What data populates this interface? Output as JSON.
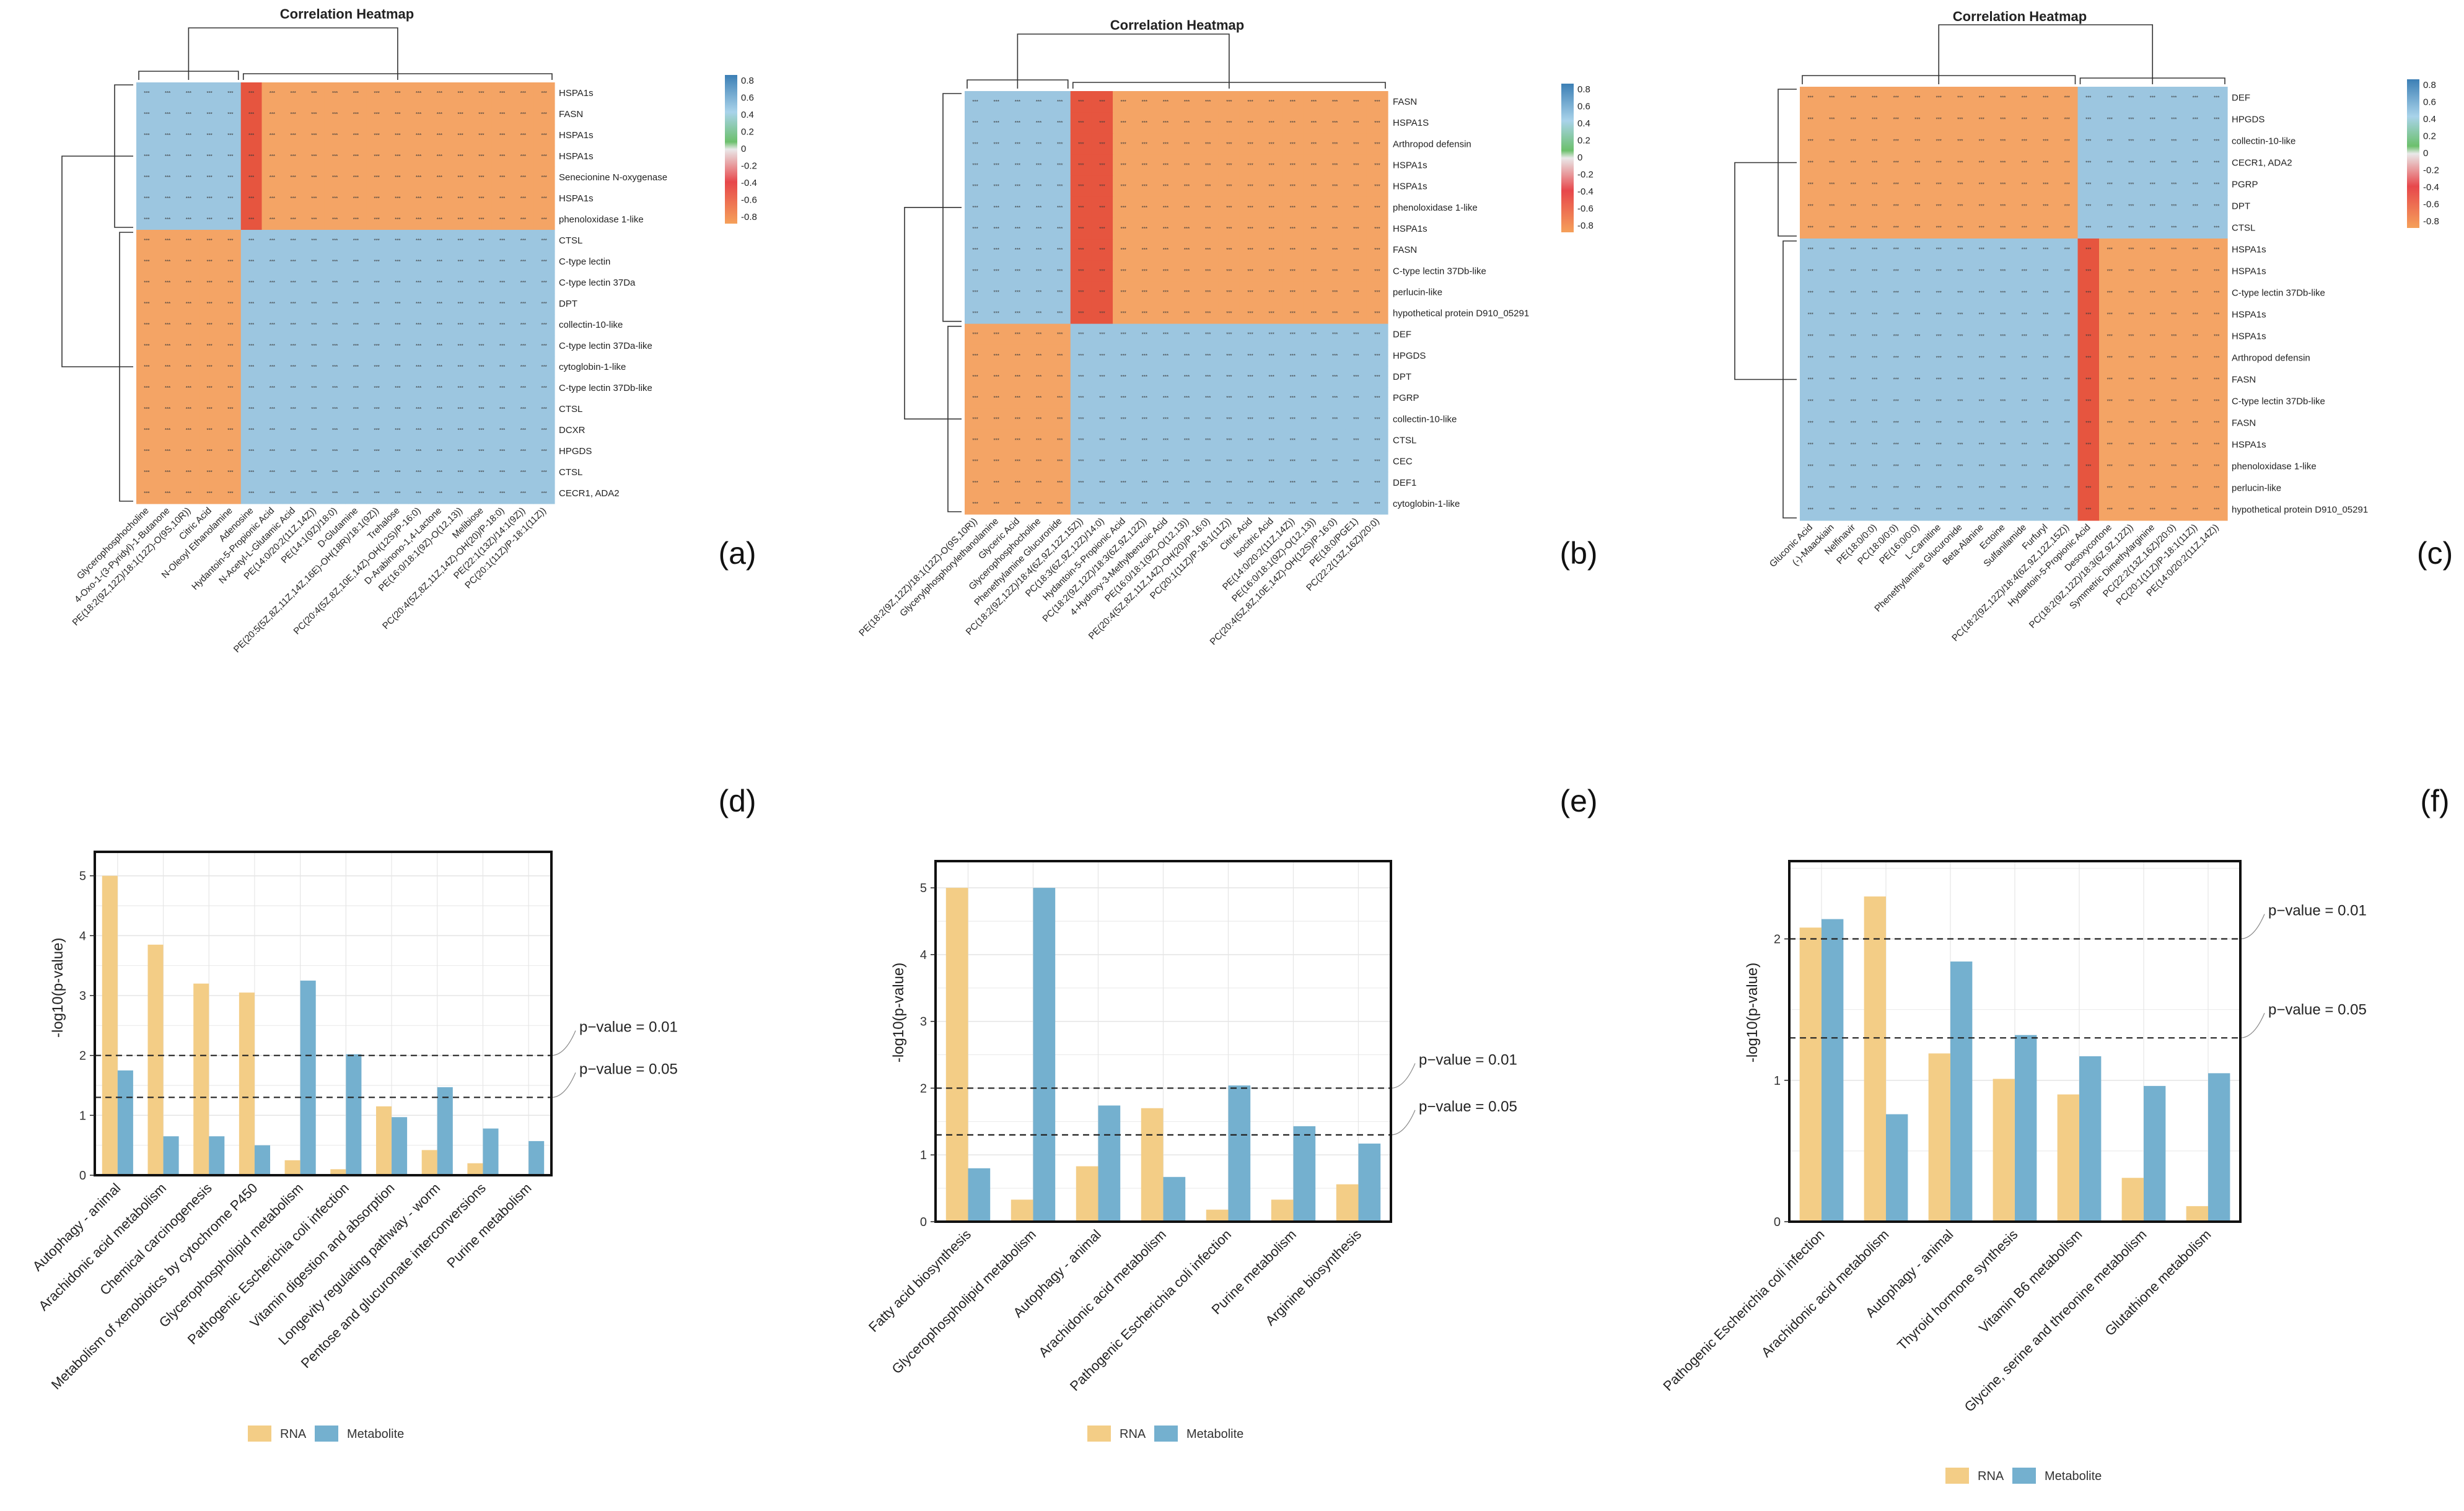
{
  "panel_labels": [
    "(a)",
    "(b)",
    "(c)",
    "(d)",
    "(e)",
    "(f)"
  ],
  "colors": {
    "rna": "#f3cd86",
    "metabolite": "#74b0cf",
    "heat_pos": "#9cc6e0",
    "heat_neg": "#f4a465",
    "heat_neg_strong": "#e6553f",
    "grid": "#e6e6e6"
  },
  "legend_labels": {
    "rna": "RNA",
    "metabolite": "Metabolite"
  },
  "chart_data": [
    {
      "id": "a",
      "type": "heatmap",
      "title": "Correlation Heatmap",
      "columns": [
        "Glycerophosphocholine",
        "4-Oxo-1-(3-Pyridyl)-1-Butanone",
        "PE(18:2(9Z,12Z)/18:1(12Z)-O(9S,10R))",
        "Citric Acid",
        "N-Oleoyl Ethanolamine",
        "Adenosine",
        "Hydantoin-5-Propionic Acid",
        "N-Acetyl-L-Glutamic Acid",
        "PE(14:0/20:2(11Z,14Z))",
        "PE(14:1(9Z)/18:0)",
        "D-Glutamine",
        "PE(20:5(5Z,8Z,11Z,14Z,16E)-OH(18R)/18:1(9Z))",
        "Trehalose",
        "PC(20:4(5Z,8Z,10E,14Z)-OH(12S)/P-16:0)",
        "D-Arabinono-1,4-Lactone",
        "PE(16:0/18:1(9Z)-O(12,13))",
        "Melibiose",
        "PC(20:4(5Z,8Z,11Z,14Z)-OH(20)/P-18:0)",
        "PE(22:1(13Z)/14:1(9Z))",
        "PC(20:1(11Z)/P-18:1(11Z))"
      ],
      "rows": [
        "HSPA1s",
        "FASN",
        "HSPA1s",
        "HSPA1s",
        "Senecionine N-oxygenase",
        "HSPA1s",
        "phenoloxidase 1-like",
        "CTSL",
        "C-type lectin",
        "C-type lectin 37Da",
        "DPT",
        "collectin-10-like",
        "C-type lectin 37Da-like",
        "cytoglobin-1-like",
        "C-type lectin 37Db-like",
        "CTSL",
        "DCXR",
        "HPGDS",
        "CTSL",
        "CECR1, ADA2"
      ],
      "colorbar_ticks": [
        "0.8",
        "0.6",
        "0.4",
        "0.2",
        "0",
        "-0.2",
        "-0.4",
        "-0.6",
        "-0.8"
      ],
      "pattern": {
        "top_block_rows": 7,
        "left_block_cols": 5,
        "value_diag_blocks": 0.8,
        "value_off_blocks": -0.8,
        "cell_text": "***"
      }
    },
    {
      "id": "b",
      "type": "heatmap",
      "title": "Correlation Heatmap",
      "columns": [
        "PE(18:2(9Z,12Z)/18:1(12Z)-O(9S,10R))",
        "Glycerylphosphorylethanolamine",
        "Glyceric Acid",
        "Glycerophosphocholine",
        "Phenethylamine Glucuronide",
        "PC(18:2(9Z,12Z)/18:4(6Z,9Z,12Z,15Z))",
        "PC(18:3(6Z,9Z,12Z)/14:0)",
        "Hydantoin-5-Propionic Acid",
        "PC(18:2(9Z,12Z)/18:3(6Z,9Z,12Z))",
        "4-Hydroxy-3-Methylbenzoic Acid",
        "PE(16:0/18:1(9Z)-O(12,13))",
        "PE(20:4(5Z,8Z,11Z,14Z)-OH(20)/P-16:0)",
        "PC(20:1(11Z)/P-18:1(11Z))",
        "Citric Acid",
        "Isocitric Acid",
        "PE(14:0/20:2(11Z,14Z))",
        "PE(16:0/18:1(9Z)-O(12,13))",
        "PC(20:4(5Z,8Z,10E,14Z)-OH(12S)/P-16:0)",
        "PE(18:0/PGE1)",
        "PC(22:2(13Z,16Z)/20:0)"
      ],
      "rows": [
        "FASN",
        "HSPA1S",
        "Arthropod defensin",
        "HSPA1s",
        "HSPA1s",
        "phenoloxidase 1-like",
        "HSPA1s",
        "FASN",
        "C-type lectin 37Db-like",
        "perlucin-like",
        "hypothetical protein D910_05291",
        "DEF",
        "HPGDS",
        "DPT",
        "PGRP",
        "collectin-10-like",
        "CTSL",
        "CEC",
        "DEF1",
        "cytoglobin-1-like"
      ],
      "colorbar_ticks": [
        "0.8",
        "0.6",
        "0.4",
        "0.2",
        "0",
        "-0.2",
        "-0.4",
        "-0.6",
        "-0.8"
      ],
      "pattern": {
        "top_block_rows": 11,
        "left_block_cols": 5,
        "value_diag_blocks": 0.8,
        "value_off_blocks": -0.8,
        "cell_text": "***"
      }
    },
    {
      "id": "c",
      "type": "heatmap",
      "title": "Correlation Heatmap",
      "columns": [
        "Gluconic Acid",
        "(-)-Maackiain",
        "Nelfinavir",
        "PE(18:0/0:0)",
        "PC(18:0/0:0)",
        "PE(16:0/0:0)",
        "L-Carnitine",
        "Phenethylamine Glucuronide",
        "Beta-Alanine",
        "Ectoine",
        "Sulfanilamide",
        "Furfuryl",
        "PC(18:2(9Z,12Z)/18:4(6Z,9Z,12Z,15Z))",
        "Hydantoin-5-Propionic Acid",
        "Desoxycortone",
        "PC(18:2(9Z,12Z)/18:3(6Z,9Z,12Z))",
        "Symmetric Dimethylarginine",
        "PC(22:2(13Z,16Z)/20:0)",
        "PC(20:1(11Z)/P-18:1(11Z))",
        "PE(14:0/20:2(11Z,14Z))"
      ],
      "rows": [
        "DEF",
        "HPGDS",
        "collectin-10-like",
        "CECR1, ADA2",
        "PGRP",
        "DPT",
        "CTSL",
        "HSPA1s",
        "HSPA1s",
        "C-type lectin 37Db-like",
        "HSPA1s",
        "HSPA1s",
        "Arthropod defensin",
        "FASN",
        "C-type lectin 37Db-like",
        "FASN",
        "HSPA1s",
        "phenoloxidase 1-like",
        "perlucin-like",
        "hypothetical protein D910_05291"
      ],
      "colorbar_ticks": [
        "0.8",
        "0.6",
        "0.4",
        "0.2",
        "0",
        "-0.2",
        "-0.4",
        "-0.6",
        "-0.8"
      ],
      "pattern": {
        "top_block_rows": 7,
        "left_block_cols": 13,
        "value_diag_blocks": -0.8,
        "value_off_blocks": 0.8,
        "cell_text": "***"
      }
    },
    {
      "id": "d",
      "type": "bar",
      "categories": [
        "Autophagy - animal",
        "Arachidonic acid metabolism",
        "Chemical carcinogenesis",
        "Metabolism of xenobiotics by cytochrome P450",
        "Glycerophospholipid metabolism",
        "Pathogenic Escherichia coli infection",
        "Vitamin digestion and absorption",
        "Longevity regulating pathway - worm",
        "Pentose and glucuronate interconversions",
        "Purine metabolism"
      ],
      "series": [
        {
          "name": "RNA",
          "values": [
            5.0,
            3.85,
            3.2,
            3.05,
            0.25,
            0.1,
            1.15,
            0.42,
            0.2,
            0.0
          ]
        },
        {
          "name": "Metabolite",
          "values": [
            1.75,
            0.65,
            0.65,
            0.5,
            3.25,
            2.02,
            0.97,
            1.47,
            0.78,
            0.57
          ]
        }
      ],
      "ylabel": "-log10(p-value)",
      "ylim": [
        0,
        5.4
      ],
      "yticks": [
        0,
        1,
        2,
        3,
        4,
        5
      ],
      "thresholds": [
        {
          "value": 2.0,
          "label": "p−value = 0.01"
        },
        {
          "value": 1.3,
          "label": "p−value = 0.05"
        }
      ]
    },
    {
      "id": "e",
      "type": "bar",
      "categories": [
        "Fatty acid biosynthesis",
        "Glycerophospholipid metabolism",
        "Autophagy - animal",
        "Arachidonic acid metabolism",
        "Pathogenic Escherichia coli infection",
        "Purine metabolism",
        "Arginine biosynthesis"
      ],
      "series": [
        {
          "name": "RNA",
          "values": [
            5.0,
            0.33,
            0.83,
            1.7,
            0.18,
            0.33,
            0.56
          ]
        },
        {
          "name": "Metabolite",
          "values": [
            0.8,
            5.0,
            1.74,
            0.67,
            2.04,
            1.43,
            1.17
          ]
        }
      ],
      "ylabel": "-log10(p-value)",
      "ylim": [
        0,
        5.4
      ],
      "yticks": [
        0,
        1,
        2,
        3,
        4,
        5
      ],
      "thresholds": [
        {
          "value": 2.0,
          "label": "p−value = 0.01"
        },
        {
          "value": 1.3,
          "label": "p−value = 0.05"
        }
      ]
    },
    {
      "id": "f",
      "type": "bar",
      "categories": [
        "Pathogenic Escherichia coli infection",
        "Arachidonic acid metabolism",
        "Autophagy - animal",
        "Thyroid hormone synthesis",
        "Vitamin B6 metabolism",
        "Glycine, serine and threonine metabolism",
        "Glutathione metabolism"
      ],
      "series": [
        {
          "name": "RNA",
          "values": [
            2.08,
            2.3,
            1.19,
            1.01,
            0.9,
            0.31,
            0.11
          ]
        },
        {
          "name": "Metabolite",
          "values": [
            2.14,
            0.76,
            1.84,
            1.32,
            1.17,
            0.96,
            1.05
          ]
        }
      ],
      "ylabel": "-log10(p-value)",
      "ylim": [
        0,
        2.55
      ],
      "yticks": [
        0,
        1,
        2
      ],
      "thresholds": [
        {
          "value": 2.0,
          "label": "p−value = 0.01"
        },
        {
          "value": 1.3,
          "label": "p−value = 0.05"
        }
      ]
    }
  ]
}
